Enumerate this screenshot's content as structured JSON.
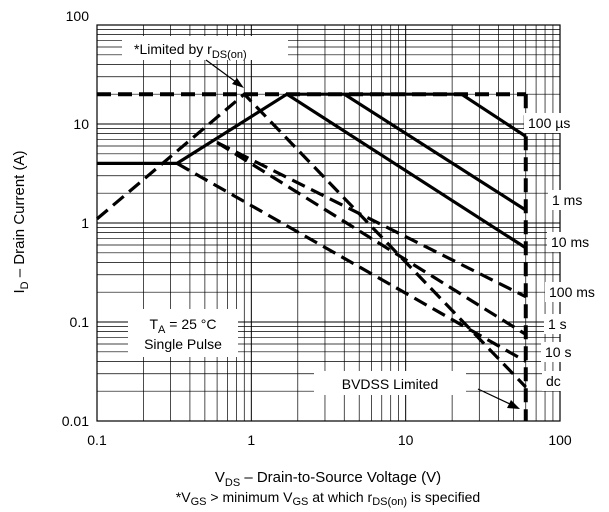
{
  "chart_data": {
    "type": "line",
    "title": "",
    "xscale": "log",
    "yscale": "log",
    "xlim": [
      0.1,
      100
    ],
    "ylim": [
      0.01,
      100
    ],
    "grid": true,
    "x_ticks": [
      "0.1",
      "1",
      "10",
      "100"
    ],
    "y_ticks": [
      "0.01",
      "0.1",
      "1",
      "10",
      "100"
    ],
    "xlabel": {
      "main": "V",
      "sub": "DS",
      "rest": " – Drain-to-Source Voltage (V)"
    },
    "ylabel": {
      "main": "I",
      "sub": "D",
      "rest": " – Drain Current (A)"
    },
    "footnote": {
      "p1": "*V",
      "s1": "GS",
      "p2": " > minimum V",
      "s2": "GS",
      "p3": " at which r",
      "s3": "DS(on)",
      "p4": " is specified"
    },
    "limits": {
      "current_limit_A": 20,
      "bvdss_V": 60
    },
    "series": [
      {
        "name": "100 µs",
        "style": "solid",
        "points": [
          [
            0.1,
            4
          ],
          [
            0.33,
            4
          ],
          [
            1.7,
            20
          ],
          [
            23,
            20
          ],
          [
            60,
            7.5
          ]
        ]
      },
      {
        "name": "1 ms",
        "style": "solid",
        "points": [
          [
            4,
            20
          ],
          [
            60,
            1.35
          ]
        ]
      },
      {
        "name": "10 ms",
        "style": "solid",
        "points": [
          [
            1.7,
            20
          ],
          [
            60,
            0.56
          ]
        ]
      },
      {
        "name": "100 ms",
        "style": "dashed",
        "points": [
          [
            0.6,
            6.5
          ],
          [
            60,
            0.18
          ]
        ]
      },
      {
        "name": "1 s",
        "style": "dashed",
        "points": [
          [
            0.6,
            6.5
          ],
          [
            60,
            0.075
          ]
        ]
      },
      {
        "name": "10 s",
        "style": "dashed",
        "points": [
          [
            0.33,
            4
          ],
          [
            60,
            0.04
          ]
        ]
      },
      {
        "name": "dc",
        "style": "dashed",
        "points": [
          [
            0.1,
            1.1
          ],
          [
            0.9,
            20
          ],
          [
            60,
            0.022
          ]
        ]
      }
    ],
    "annotations": {
      "rds_limit": {
        "text": "*Limited by r",
        "sub": "DS(on)"
      },
      "conditions": {
        "line1_main": "T",
        "line1_sub": "A",
        "line1_rest": " = 25 °C",
        "line2": "Single Pulse"
      },
      "bvdss": "BVDSS Limited"
    }
  }
}
